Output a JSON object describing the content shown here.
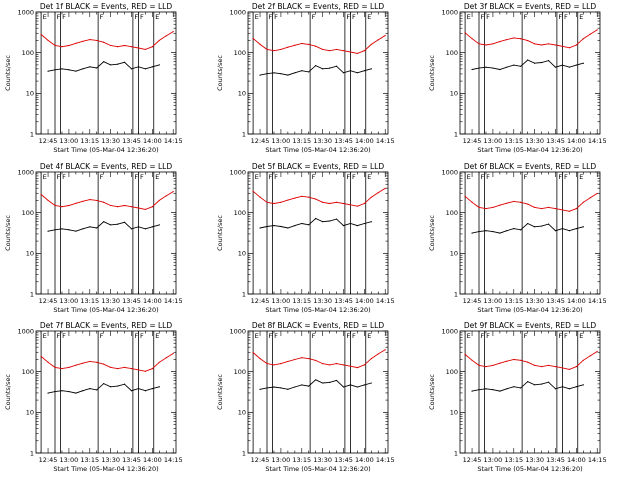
{
  "figure": {
    "panel_titles": [
      "Det 1f BLACK = Events, RED = LLD",
      "Det 2f BLACK = Events, RED = LLD",
      "Det 3f BLACK = Events, RED = LLD",
      "Det 4f BLACK = Events, RED = LLD",
      "Det 5f BLACK = Events, RED = LLD",
      "Det 6f BLACK = Events, RED = LLD",
      "Det 7f BLACK = Events, RED = LLD",
      "Det 8f BLACK = Events, RED = LLD",
      "Det 9f BLACK = Events, RED = LLD"
    ],
    "xlabel": "Start Time (05-Mar-04 12:36:20)",
    "ylabel": "Counts/sec",
    "colors": {
      "events": "#000000",
      "lld": "#dd0000",
      "axes": "#000000"
    }
  },
  "chart_data": {
    "type": "line",
    "layout": "3x3 grid of panels, one per detector",
    "xlim": [
      "12:36:20",
      "14:17:00"
    ],
    "x_ticks": [
      "12:45",
      "13:00",
      "13:15",
      "13:30",
      "13:45",
      "14:00",
      "14:15"
    ],
    "y_scale": "log",
    "ylim": [
      1,
      1000
    ],
    "y_ticks": [
      "1",
      "10",
      "100",
      "1000"
    ],
    "grid": false,
    "legend": "none (series identified in panel titles)",
    "markers": [
      {
        "time": "12:40",
        "label": "E"
      },
      {
        "time": "12:50",
        "label": "F"
      },
      {
        "time": "12:54",
        "label": "F"
      },
      {
        "time": "13:21",
        "label": "F"
      },
      {
        "time": "13:46",
        "label": "F"
      },
      {
        "time": "13:50",
        "label": "F"
      },
      {
        "time": "14:01",
        "label": "E"
      }
    ],
    "series": [
      {
        "name": "Events",
        "color": "#000000",
        "x": [
          "12:45",
          "12:50",
          "12:55",
          "13:00",
          "13:05",
          "13:10",
          "13:15",
          "13:20",
          "13:25",
          "13:30",
          "13:35",
          "13:40",
          "13:45",
          "13:50",
          "13:55",
          "14:00",
          "14:05"
        ],
        "y": [
          35,
          38,
          40,
          38,
          35,
          40,
          45,
          42,
          60,
          50,
          52,
          58,
          40,
          45,
          40,
          45,
          50
        ]
      },
      {
        "name": "LLD",
        "color": "#dd0000",
        "x": [
          "12:40",
          "12:45",
          "12:50",
          "12:55",
          "13:00",
          "13:05",
          "13:10",
          "13:15",
          "13:20",
          "13:25",
          "13:30",
          "13:35",
          "13:40",
          "13:45",
          "13:50",
          "13:55",
          "14:00",
          "14:05",
          "14:10",
          "14:15"
        ],
        "y": [
          280,
          200,
          150,
          140,
          150,
          170,
          190,
          210,
          200,
          180,
          150,
          140,
          150,
          140,
          130,
          120,
          140,
          200,
          260,
          330
        ]
      }
    ]
  }
}
